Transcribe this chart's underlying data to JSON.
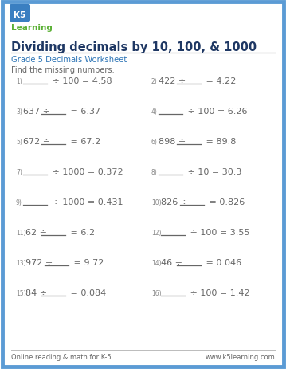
{
  "title": "Dividing decimals by 10, 100, & 1000",
  "subtitle": "Grade 5 Decimals Worksheet",
  "instruction": "Find the missing numbers:",
  "bg_color": "#ffffff",
  "border_color": "#5b9bd5",
  "title_color": "#1f3864",
  "subtitle_color": "#2e75b6",
  "text_color": "#666666",
  "num_color": "#888888",
  "problems": [
    {
      "num": "1)",
      "pre": "",
      "div": "÷ 100",
      "post": "= 4.58",
      "blank_first": true
    },
    {
      "num": "2)",
      "pre": "422",
      "div": "÷",
      "post": "= 4.22",
      "blank_first": false
    },
    {
      "num": "3)",
      "pre": "637",
      "div": "÷",
      "post": "= 6.37",
      "blank_first": false
    },
    {
      "num": "4)",
      "pre": "",
      "div": "÷ 100",
      "post": "= 6.26",
      "blank_first": true
    },
    {
      "num": "5)",
      "pre": "672",
      "div": "÷",
      "post": "= 67.2",
      "blank_first": false
    },
    {
      "num": "6)",
      "pre": "898",
      "div": "÷",
      "post": "= 89.8",
      "blank_first": false
    },
    {
      "num": "7)",
      "pre": "",
      "div": "÷ 1000",
      "post": "= 0.372",
      "blank_first": true
    },
    {
      "num": "8)",
      "pre": "",
      "div": "÷ 10",
      "post": "= 30.3",
      "blank_first": true
    },
    {
      "num": "9)",
      "pre": "",
      "div": "÷ 1000",
      "post": "= 0.431",
      "blank_first": true
    },
    {
      "num": "10)",
      "pre": "826",
      "div": "÷",
      "post": "= 0.826",
      "blank_first": false
    },
    {
      "num": "11)",
      "pre": "62",
      "div": "÷",
      "post": "= 6.2",
      "blank_first": false
    },
    {
      "num": "12)",
      "pre": "",
      "div": "÷ 100",
      "post": "= 3.55",
      "blank_first": true
    },
    {
      "num": "13)",
      "pre": "972",
      "div": "÷",
      "post": "= 9.72",
      "blank_first": false
    },
    {
      "num": "14)",
      "pre": "46",
      "div": "÷",
      "post": "= 0.046",
      "blank_first": false
    },
    {
      "num": "15)",
      "pre": "84",
      "div": "÷",
      "post": "= 0.084",
      "blank_first": false
    },
    {
      "num": "16)",
      "pre": "",
      "div": "÷ 100",
      "post": "= 1.42",
      "blank_first": true
    }
  ],
  "footer_left": "Online reading & math for K-5",
  "footer_right": "www.k5learning.com"
}
